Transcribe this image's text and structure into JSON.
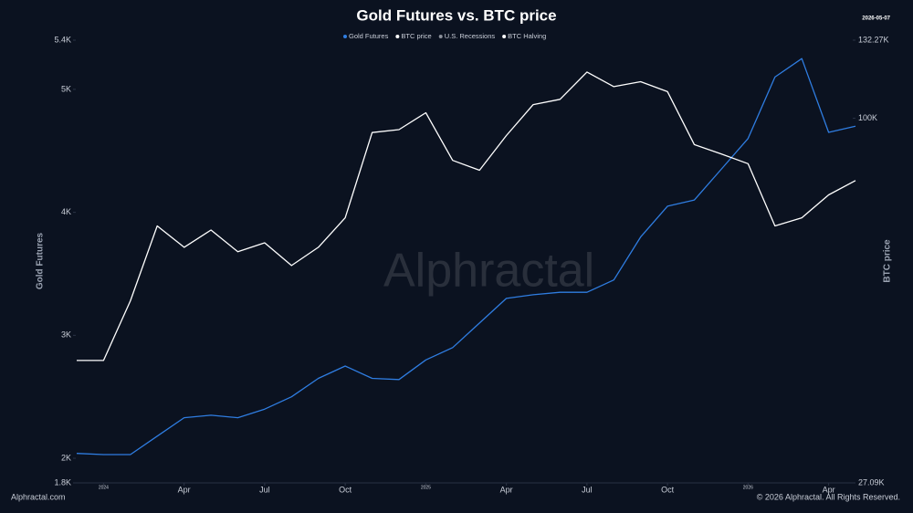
{
  "chart_data": {
    "type": "line",
    "title": "Gold Futures vs. BTC price",
    "date_label": "2026-05-07",
    "watermark": "Alphractal",
    "footer_left": "Alphractal.com",
    "footer_right": "© 2026 Alphractal. All Rights Reserved.",
    "y_label": "Gold Futures",
    "y2_label": "BTC price",
    "x": [
      "2023-12",
      "2024-01",
      "2024-02",
      "2024-03",
      "2024-04",
      "2024-05",
      "2024-06",
      "2024-07",
      "2024-08",
      "2024-09",
      "2024-10",
      "2024-11",
      "2024-12",
      "2025-01",
      "2025-02",
      "2025-03",
      "2025-04",
      "2025-05",
      "2025-06",
      "2025-07",
      "2025-08",
      "2025-09",
      "2025-10",
      "2025-11",
      "2025-12",
      "2026-01",
      "2026-02",
      "2026-03",
      "2026-04",
      "2026-05"
    ],
    "xlim": [
      "2023-12",
      "2026-05"
    ],
    "xticks": [
      {
        "value": "2024-01",
        "label": "2024"
      },
      {
        "value": "2024-04",
        "label": "Apr"
      },
      {
        "value": "2024-07",
        "label": "Jul"
      },
      {
        "value": "2024-10",
        "label": "Oct"
      },
      {
        "value": "2025-01",
        "label": "2025"
      },
      {
        "value": "2025-04",
        "label": "Apr"
      },
      {
        "value": "2025-07",
        "label": "Jul"
      },
      {
        "value": "2025-10",
        "label": "Oct"
      },
      {
        "value": "2026-01",
        "label": "2026"
      },
      {
        "value": "2026-04",
        "label": "Apr"
      }
    ],
    "ylim": [
      1800,
      5400
    ],
    "yticks": [
      {
        "value": 1800,
        "label": "1.8K"
      },
      {
        "value": 2000,
        "label": "2K"
      },
      {
        "value": 3000,
        "label": "3K"
      },
      {
        "value": 4000,
        "label": "4K"
      },
      {
        "value": 5000,
        "label": "5K"
      },
      {
        "value": 5400,
        "label": "5.4K"
      }
    ],
    "y2lim": [
      27090,
      132270
    ],
    "y2scale": "log",
    "y2ticks": [
      {
        "value": 27090,
        "label": "27.09K"
      },
      {
        "value": 100000,
        "label": "100K"
      },
      {
        "value": 132270,
        "label": "132.27K"
      }
    ],
    "series": [
      {
        "name": "Gold Futures",
        "color": "#2f7de1",
        "values": [
          2040,
          2030,
          2030,
          2180,
          2330,
          2350,
          2330,
          2400,
          2500,
          2650,
          2750,
          2650,
          2640,
          2800,
          2900,
          3100,
          3300,
          3330,
          3350,
          3350,
          3450,
          3800,
          4050,
          4100,
          4350,
          4600,
          5100,
          5250,
          4650,
          4700
        ]
      },
      {
        "name": "BTC price",
        "color": "#ffffff",
        "axis": "y2",
        "values": [
          42000,
          42000,
          52000,
          68000,
          63000,
          67000,
          62000,
          64000,
          59000,
          63000,
          70000,
          95000,
          96000,
          102000,
          86000,
          83000,
          94000,
          105000,
          107000,
          118000,
          112000,
          114000,
          110000,
          91000,
          88000,
          85000,
          68000,
          70000,
          76000,
          80000
        ]
      }
    ],
    "legend_items": [
      {
        "name": "U.S. Recessions",
        "color": "#8a8f99"
      },
      {
        "name": "BTC Halving",
        "color": "#ffffff"
      }
    ]
  }
}
